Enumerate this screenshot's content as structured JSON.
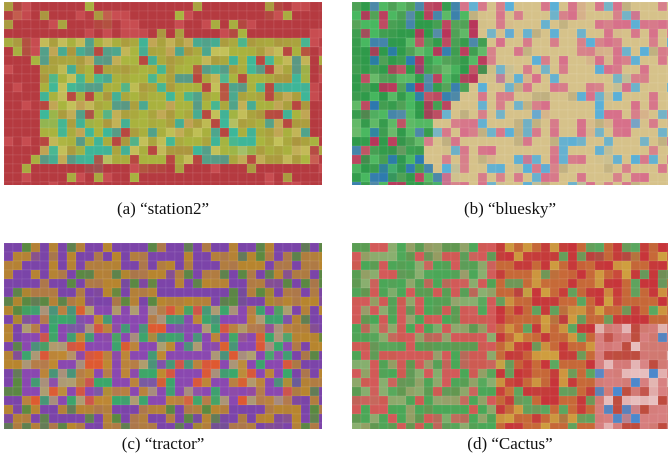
{
  "figures": [
    {
      "caption": "(a) “station2”"
    },
    {
      "caption": "(b) “bluesky”"
    },
    {
      "caption": "(c) “tractor”"
    },
    {
      "caption": "(d) “Cactus”"
    }
  ]
}
